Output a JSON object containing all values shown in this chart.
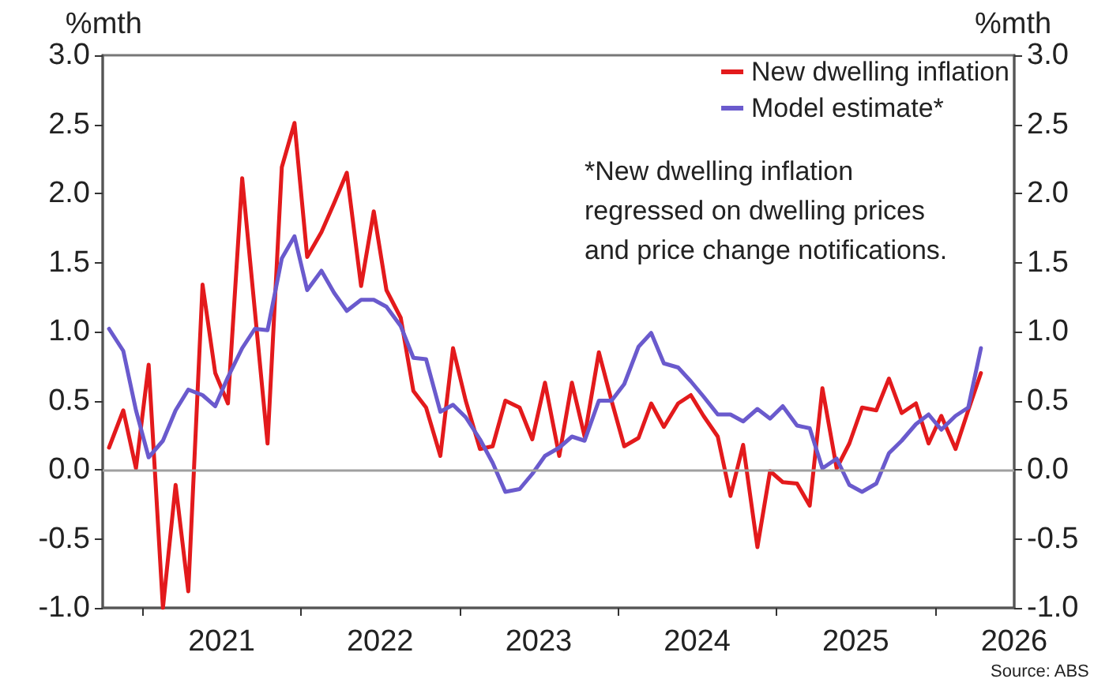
{
  "chart_data": {
    "type": "line",
    "ylabel": "%mth",
    "y2label": "%mth",
    "x": [
      2020.79,
      2020.88,
      2020.96,
      2021.04,
      2021.13,
      2021.21,
      2021.29,
      2021.38,
      2021.46,
      2021.54,
      2021.63,
      2021.71,
      2021.79,
      2021.88,
      2021.96,
      2022.04,
      2022.13,
      2022.21,
      2022.29,
      2022.38,
      2022.46,
      2022.54,
      2022.63,
      2022.71,
      2022.79,
      2022.88,
      2022.96,
      2023.04,
      2023.13,
      2023.21,
      2023.29,
      2023.38,
      2023.46,
      2023.54,
      2023.63,
      2023.71,
      2023.79,
      2023.88,
      2023.96,
      2024.04,
      2024.13,
      2024.21,
      2024.29,
      2024.38,
      2024.46,
      2024.54,
      2024.63,
      2024.71,
      2024.79,
      2024.88,
      2024.96,
      2025.04,
      2025.13,
      2025.21,
      2025.29,
      2025.38,
      2025.46,
      2025.54,
      2025.63,
      2025.71,
      2025.79,
      2025.88,
      2025.96,
      2026.04,
      2026.13,
      2026.21,
      2026.29
    ],
    "series": [
      {
        "name": "New dwelling inflation",
        "color": "#e31a1c",
        "values": [
          0.16,
          0.43,
          0.01,
          0.76,
          -1.0,
          -0.11,
          -0.88,
          1.34,
          0.7,
          0.48,
          2.11,
          1.15,
          0.19,
          2.19,
          2.51,
          1.54,
          1.72,
          1.93,
          2.15,
          1.33,
          1.87,
          1.3,
          1.1,
          0.57,
          0.45,
          0.1,
          0.88,
          0.5,
          0.15,
          0.17,
          0.5,
          0.45,
          0.22,
          0.63,
          0.1,
          0.63,
          0.24,
          0.85,
          0.5,
          0.17,
          0.23,
          0.48,
          0.31,
          0.48,
          0.54,
          0.39,
          0.24,
          -0.19,
          0.18,
          -0.56,
          -0.01,
          -0.09,
          -0.1,
          -0.26,
          0.59,
          0.01,
          0.19,
          0.45,
          0.43,
          0.66,
          0.41,
          0.48,
          0.19,
          0.39,
          0.15,
          0.43,
          0.7
        ]
      },
      {
        "name": "Model estimate*",
        "color": "#6a5acd",
        "values": [
          1.02,
          0.86,
          0.43,
          0.09,
          0.21,
          0.43,
          0.58,
          0.54,
          0.46,
          0.67,
          0.88,
          1.02,
          1.01,
          1.53,
          1.69,
          1.3,
          1.44,
          1.28,
          1.15,
          1.23,
          1.23,
          1.18,
          1.04,
          0.81,
          0.8,
          0.42,
          0.47,
          0.38,
          0.22,
          0.05,
          -0.16,
          -0.14,
          -0.03,
          0.1,
          0.16,
          0.24,
          0.21,
          0.5,
          0.5,
          0.62,
          0.89,
          0.99,
          0.77,
          0.74,
          0.64,
          0.53,
          0.4,
          0.4,
          0.35,
          0.44,
          0.37,
          0.46,
          0.32,
          0.3,
          0.01,
          0.08,
          -0.11,
          -0.16,
          -0.1,
          0.12,
          0.21,
          0.33,
          0.4,
          0.29,
          0.39,
          0.45,
          0.88
        ]
      }
    ],
    "xlim": [
      2020.75,
      2026.5
    ],
    "xticks": [
      {
        "value": 2021,
        "label": null
      },
      {
        "value": 2021.5,
        "label": "2021"
      },
      {
        "value": 2022,
        "label": null
      },
      {
        "value": 2022.5,
        "label": "2022"
      },
      {
        "value": 2023,
        "label": null
      },
      {
        "value": 2023.5,
        "label": "2023"
      },
      {
        "value": 2024,
        "label": null
      },
      {
        "value": 2024.5,
        "label": "2024"
      },
      {
        "value": 2025,
        "label": null
      },
      {
        "value": 2025.5,
        "label": "2025"
      },
      {
        "value": 2026,
        "label": null
      },
      {
        "value": 2026.5,
        "label": "2026"
      }
    ],
    "ylim": [
      -1.0,
      3.0
    ],
    "yticks": [
      {
        "value": -1,
        "label": "-1.0"
      },
      {
        "value": -0.5,
        "label": "-0.5"
      },
      {
        "value": 0,
        "label": "0.0"
      },
      {
        "value": 0.5,
        "label": "0.5"
      },
      {
        "value": 1,
        "label": "1.0"
      },
      {
        "value": 1.5,
        "label": "1.5"
      },
      {
        "value": 2,
        "label": "2.0"
      },
      {
        "value": 2.5,
        "label": "2.5"
      },
      {
        "value": 3,
        "label": "3.0"
      }
    ],
    "y2lim": [
      -1.0,
      3.0
    ],
    "y2ticks": [
      {
        "value": -1,
        "label": "-1.0"
      },
      {
        "value": -0.5,
        "label": "-0.5"
      },
      {
        "value": 0,
        "label": "0.0"
      },
      {
        "value": 0.5,
        "label": "0.5"
      },
      {
        "value": 1,
        "label": "1.0"
      },
      {
        "value": 1.5,
        "label": "1.5"
      },
      {
        "value": 2,
        "label": "2.0"
      },
      {
        "value": 2.5,
        "label": "2.5"
      },
      {
        "value": 3,
        "label": "3.0"
      }
    ],
    "ref_lines": [
      {
        "axis": "y",
        "value": 0,
        "label": null,
        "color": "#a0a0a0"
      }
    ],
    "grid": false,
    "legend": "top right",
    "marker": "none",
    "line_style": "solid",
    "annotations": [
      "*New dwelling inflation\nregressed on dwelling prices\nand price change notifications.",
      "Source: ABS"
    ]
  }
}
